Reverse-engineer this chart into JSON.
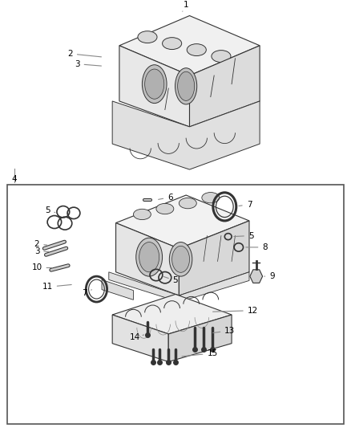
{
  "bg_color": "#ffffff",
  "line_color": "#000000",
  "part_line_color": "#888888",
  "fig_width": 4.38,
  "fig_height": 5.33,
  "dpi": 100,
  "dgray": "#333333",
  "mgray": "#888888"
}
